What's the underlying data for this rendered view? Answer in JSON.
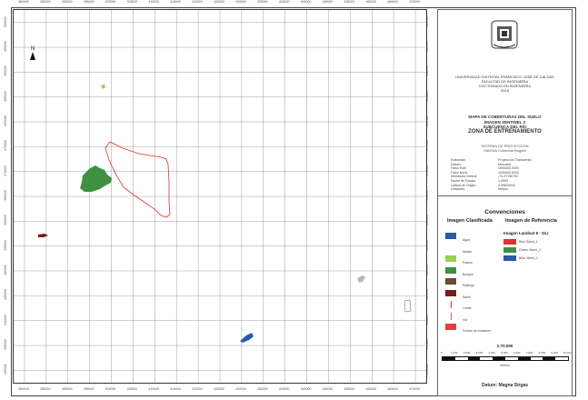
{
  "map": {
    "x_ticks": [
      "380000",
      "385000",
      "390000",
      "395000",
      "400000",
      "405000",
      "410000",
      "415000",
      "420000",
      "425000",
      "430000",
      "435000",
      "440000",
      "445000",
      "450000",
      "455000",
      "460000",
      "465000",
      "470000"
    ],
    "y_ticks": [
      "500000",
      "495000",
      "490000",
      "485000",
      "480000",
      "475000",
      "470000",
      "465000",
      "460000",
      "455000",
      "450000",
      "445000",
      "440000",
      "435000",
      "430000"
    ],
    "north_label": "N",
    "colors": {
      "grid": "#888888",
      "bosque": "#3d9140",
      "pasto": "#9ad04e",
      "area_estudio": "#e03030",
      "rastrojo": "#7a1a1a",
      "agua": "#2a5aa8",
      "nubes": "#b8b8b8"
    }
  },
  "panel": {
    "title_lines": [
      "UNIVERSIDAD DISTRITAL FRANCISCO JOSÉ DE CALDAS",
      "FACULTAD DE INGENIERÍA",
      "DOCTORADO EN INGENIERÍA",
      "2018"
    ],
    "map_title": [
      "MAPA DE COBERTURAS DEL SUELO",
      "IMAGEN SENTINEL 2",
      "SUBCUENCA DEL RÍO",
      "ZONA DE ENTRENAMIENTO"
    ],
    "subtitle": [
      "SISTEMA DE PROYECCIÓN",
      "MAGNA Colombia Bogotá"
    ],
    "meta": [
      {
        "k": "Elaborado",
        "v": "Proyección Transversa"
      },
      {
        "k": "Datum",
        "v": "Mercator"
      },
      {
        "k": "Falso Este",
        "v": "1000000.0000"
      },
      {
        "k": "Falso Norte",
        "v": "1000000.0000"
      },
      {
        "k": "Meridiano Central",
        "v": "-74.07750792"
      },
      {
        "k": "Factor de Escala",
        "v": "1.0000"
      },
      {
        "k": "Latitud de Origen",
        "v": "4.59620042"
      },
      {
        "k": "Unidades",
        "v": "Metros"
      }
    ],
    "legend": {
      "title": "Convenciones",
      "col_left": "Imagen Clasificada",
      "col_right": "Imagen de Referencia",
      "left_items": [
        {
          "label": "Agua",
          "color": "#2a5aa8"
        },
        {
          "label": "Nubes",
          "color": "#ffffff"
        },
        {
          "label": "Pastos",
          "color": "#9ad04e"
        },
        {
          "label": "Bosque",
          "color": "#3d9140"
        },
        {
          "label": "Rastrojo",
          "color": "#6b4a3a"
        },
        {
          "label": "Suelo",
          "color": "#7a1a1a"
        },
        {
          "label": "Límite",
          "color": "#e03030"
        },
        {
          "label": "Vía",
          "color": "#e05080"
        },
        {
          "label": "Puntos de muestreo",
          "color": "#e04040"
        }
      ],
      "right_head": "Imagen Landsat 8 - OLI",
      "right_items": [
        {
          "label": "Red: Band_4",
          "color": "#e03030"
        },
        {
          "label": "Green: Band_3",
          "color": "#3d9140"
        },
        {
          "label": "Blue: Band_2",
          "color": "#2a5aa8"
        }
      ]
    },
    "scale": {
      "text": "1:70.000",
      "labels": [
        "0",
        "1.000",
        "2.000",
        "3.000",
        "4.000",
        "5.000",
        "6.000",
        "7.000",
        "8.000",
        "9.000",
        "10.000"
      ],
      "unit": "Metros",
      "footer": "Datum: Magna Sirgas"
    }
  }
}
